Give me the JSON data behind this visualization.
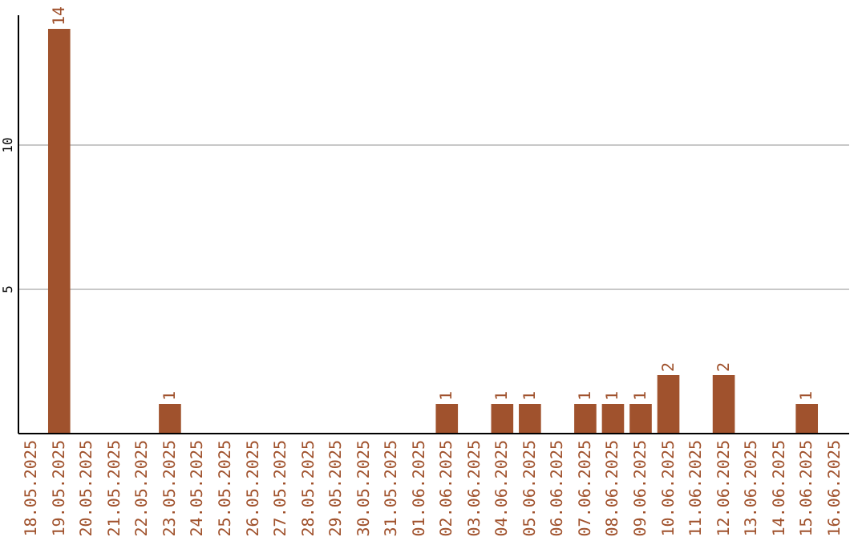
{
  "chart_data": {
    "type": "bar",
    "categories": [
      "18.05.2025",
      "19.05.2025",
      "20.05.2025",
      "21.05.2025",
      "22.05.2025",
      "23.05.2025",
      "24.05.2025",
      "25.05.2025",
      "26.05.2025",
      "27.05.2025",
      "28.05.2025",
      "29.05.2025",
      "30.05.2025",
      "31.05.2025",
      "01.06.2025",
      "02.06.2025",
      "03.06.2025",
      "04.06.2025",
      "05.06.2025",
      "06.06.2025",
      "07.06.2025",
      "08.06.2025",
      "09.06.2025",
      "10.06.2025",
      "11.06.2025",
      "12.06.2025",
      "13.06.2025",
      "14.06.2025",
      "15.06.2025",
      "16.06.2025"
    ],
    "values": [
      0,
      14,
      0,
      0,
      0,
      1,
      0,
      0,
      0,
      0,
      0,
      0,
      0,
      0,
      0,
      1,
      0,
      1,
      1,
      0,
      1,
      1,
      1,
      2,
      0,
      2,
      0,
      0,
      1,
      0
    ],
    "value_labels": [
      null,
      "14",
      null,
      null,
      null,
      "1",
      null,
      null,
      null,
      null,
      null,
      null,
      null,
      null,
      null,
      "1",
      null,
      "1",
      "1",
      null,
      "1",
      "1",
      "1",
      "2",
      null,
      "2",
      null,
      null,
      "1",
      null
    ],
    "color": "#a0522d",
    "ylim": [
      0,
      14.5
    ],
    "yticks": [
      5,
      10
    ],
    "grid": "y"
  }
}
